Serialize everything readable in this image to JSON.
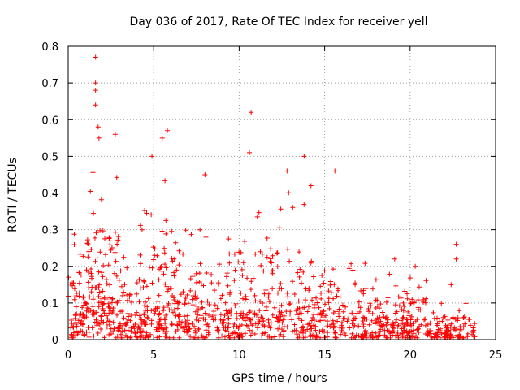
{
  "chart_data": {
    "type": "scatter",
    "title": "Day 036 of 2017, Rate Of TEC Index for receiver yell",
    "xlabel": "GPS time / hours",
    "ylabel": "ROTI / TECUs",
    "xlim": [
      0,
      25
    ],
    "ylim": [
      0,
      0.8
    ],
    "xticks": [
      0,
      5,
      10,
      15,
      20,
      25
    ],
    "xtick_labels": [
      "0",
      "5",
      "10",
      "15",
      "20",
      "25"
    ],
    "yticks": [
      0,
      0.1,
      0.2,
      0.3,
      0.4,
      0.5,
      0.6,
      0.7,
      0.8
    ],
    "ytick_labels": [
      "0",
      "0.1",
      "0.2",
      "0.3",
      "0.4",
      "0.5",
      "0.6",
      "0.7",
      "0.8"
    ],
    "grid": true,
    "marker": "plus",
    "marker_color": "#ff0000",
    "series": [
      {
        "name": "ROTI",
        "notable_points": [
          {
            "x": 1.6,
            "y": 0.77
          },
          {
            "x": 1.6,
            "y": 0.7
          },
          {
            "x": 1.6,
            "y": 0.68
          },
          {
            "x": 1.6,
            "y": 0.64
          },
          {
            "x": 1.75,
            "y": 0.58
          },
          {
            "x": 1.8,
            "y": 0.55
          },
          {
            "x": 2.75,
            "y": 0.56
          },
          {
            "x": 5.8,
            "y": 0.57
          },
          {
            "x": 5.5,
            "y": 0.55
          },
          {
            "x": 4.9,
            "y": 0.5
          },
          {
            "x": 10.7,
            "y": 0.62
          },
          {
            "x": 10.6,
            "y": 0.51
          },
          {
            "x": 13.8,
            "y": 0.5
          },
          {
            "x": 12.8,
            "y": 0.46
          },
          {
            "x": 15.6,
            "y": 0.46
          },
          {
            "x": 8.0,
            "y": 0.45
          },
          {
            "x": 14.2,
            "y": 0.42
          },
          {
            "x": 22.7,
            "y": 0.26
          },
          {
            "x": 22.7,
            "y": 0.22
          },
          {
            "x": 22.4,
            "y": 0.15
          },
          {
            "x": 20.3,
            "y": 0.2
          },
          {
            "x": 19.1,
            "y": 0.22
          }
        ],
        "bands": [
          {
            "x_start": 0.0,
            "x_end": 1.0,
            "base": 0.07,
            "peak": 0.3,
            "density": 70
          },
          {
            "x_start": 1.0,
            "x_end": 3.0,
            "base": 0.12,
            "peak": 0.48,
            "density": 150
          },
          {
            "x_start": 3.0,
            "x_end": 4.5,
            "base": 0.08,
            "peak": 0.36,
            "density": 90
          },
          {
            "x_start": 4.5,
            "x_end": 6.5,
            "base": 0.1,
            "peak": 0.45,
            "density": 130
          },
          {
            "x_start": 6.5,
            "x_end": 9.0,
            "base": 0.07,
            "peak": 0.3,
            "density": 120
          },
          {
            "x_start": 9.0,
            "x_end": 12.0,
            "base": 0.08,
            "peak": 0.4,
            "density": 160
          },
          {
            "x_start": 12.0,
            "x_end": 15.0,
            "base": 0.08,
            "peak": 0.42,
            "density": 150
          },
          {
            "x_start": 15.0,
            "x_end": 17.5,
            "base": 0.06,
            "peak": 0.25,
            "density": 110
          },
          {
            "x_start": 17.5,
            "x_end": 19.5,
            "base": 0.05,
            "peak": 0.18,
            "density": 90
          },
          {
            "x_start": 19.5,
            "x_end": 21.0,
            "base": 0.06,
            "peak": 0.18,
            "density": 80
          },
          {
            "x_start": 21.0,
            "x_end": 23.8,
            "base": 0.03,
            "peak": 0.1,
            "density": 110
          }
        ]
      }
    ]
  }
}
